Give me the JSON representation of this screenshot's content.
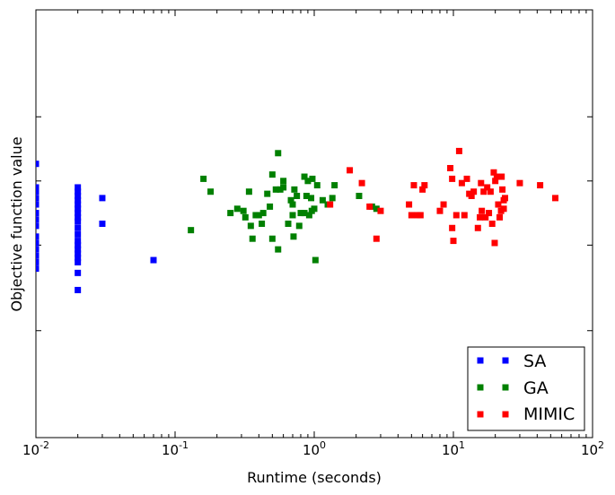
{
  "chart_data": {
    "type": "scatter",
    "xlabel": "Runtime (seconds)",
    "ylabel": "Objective function value",
    "xscale": "log",
    "xlim": [
      0.01,
      100
    ],
    "ylim": [
      0,
      1
    ],
    "y_tick_labels_shown": false,
    "x_ticks": [
      {
        "value": 0.01,
        "base": "10",
        "exp": "-2"
      },
      {
        "value": 0.1,
        "base": "10",
        "exp": "-1"
      },
      {
        "value": 1,
        "base": "10",
        "exp": "0"
      },
      {
        "value": 10,
        "base": "10",
        "exp": "1"
      },
      {
        "value": 100,
        "base": "10",
        "exp": "2"
      }
    ],
    "y_ticks": [
      0.25,
      0.45,
      0.6,
      0.75,
      1.0
    ],
    "grid": false,
    "legend_position": "lower-right",
    "series": [
      {
        "name": "SA",
        "color": "#0000ff",
        "points": [
          [
            0.01,
            0.64
          ],
          [
            0.01,
            0.585
          ],
          [
            0.01,
            0.575
          ],
          [
            0.01,
            0.56
          ],
          [
            0.01,
            0.545
          ],
          [
            0.01,
            0.525
          ],
          [
            0.01,
            0.51
          ],
          [
            0.01,
            0.495
          ],
          [
            0.01,
            0.47
          ],
          [
            0.01,
            0.455
          ],
          [
            0.01,
            0.44
          ],
          [
            0.01,
            0.425
          ],
          [
            0.01,
            0.41
          ],
          [
            0.01,
            0.395
          ],
          [
            0.02,
            0.585
          ],
          [
            0.02,
            0.575
          ],
          [
            0.02,
            0.565
          ],
          [
            0.02,
            0.555
          ],
          [
            0.02,
            0.545
          ],
          [
            0.02,
            0.535
          ],
          [
            0.02,
            0.525
          ],
          [
            0.02,
            0.515
          ],
          [
            0.02,
            0.505
          ],
          [
            0.02,
            0.49
          ],
          [
            0.02,
            0.475
          ],
          [
            0.02,
            0.46
          ],
          [
            0.02,
            0.45
          ],
          [
            0.02,
            0.44
          ],
          [
            0.02,
            0.43
          ],
          [
            0.02,
            0.42
          ],
          [
            0.02,
            0.41
          ],
          [
            0.02,
            0.385
          ],
          [
            0.02,
            0.345
          ],
          [
            0.03,
            0.56
          ],
          [
            0.03,
            0.5
          ],
          [
            0.07,
            0.415
          ]
        ]
      },
      {
        "name": "GA",
        "color": "#008000",
        "points": [
          [
            0.13,
            0.485
          ],
          [
            0.16,
            0.605
          ],
          [
            0.18,
            0.575
          ],
          [
            0.25,
            0.525
          ],
          [
            0.28,
            0.535
          ],
          [
            0.31,
            0.53
          ],
          [
            0.32,
            0.515
          ],
          [
            0.34,
            0.575
          ],
          [
            0.35,
            0.495
          ],
          [
            0.36,
            0.465
          ],
          [
            0.38,
            0.52
          ],
          [
            0.4,
            0.52
          ],
          [
            0.42,
            0.5
          ],
          [
            0.43,
            0.525
          ],
          [
            0.46,
            0.57
          ],
          [
            0.48,
            0.54
          ],
          [
            0.5,
            0.615
          ],
          [
            0.5,
            0.465
          ],
          [
            0.53,
            0.58
          ],
          [
            0.55,
            0.44
          ],
          [
            0.55,
            0.665
          ],
          [
            0.57,
            0.58
          ],
          [
            0.6,
            0.585
          ],
          [
            0.6,
            0.6
          ],
          [
            0.65,
            0.5
          ],
          [
            0.68,
            0.555
          ],
          [
            0.7,
            0.52
          ],
          [
            0.7,
            0.545
          ],
          [
            0.71,
            0.47
          ],
          [
            0.72,
            0.58
          ],
          [
            0.75,
            0.565
          ],
          [
            0.78,
            0.495
          ],
          [
            0.8,
            0.525
          ],
          [
            0.85,
            0.525
          ],
          [
            0.85,
            0.61
          ],
          [
            0.88,
            0.565
          ],
          [
            0.9,
            0.6
          ],
          [
            0.92,
            0.52
          ],
          [
            0.95,
            0.56
          ],
          [
            0.96,
            0.53
          ],
          [
            0.97,
            0.605
          ],
          [
            1.0,
            0.535
          ],
          [
            1.02,
            0.415
          ],
          [
            1.05,
            0.59
          ],
          [
            1.15,
            0.555
          ],
          [
            1.25,
            0.545
          ],
          [
            1.35,
            0.56
          ],
          [
            1.4,
            0.59
          ],
          [
            2.1,
            0.565
          ],
          [
            2.6,
            0.54
          ],
          [
            2.8,
            0.535
          ]
        ]
      },
      {
        "name": "MIMIC",
        "color": "#ff0000",
        "points": [
          [
            1.3,
            0.545
          ],
          [
            1.8,
            0.625
          ],
          [
            2.2,
            0.595
          ],
          [
            2.5,
            0.54
          ],
          [
            2.8,
            0.465
          ],
          [
            3.0,
            0.53
          ],
          [
            4.8,
            0.545
          ],
          [
            5.0,
            0.52
          ],
          [
            5.2,
            0.59
          ],
          [
            5.5,
            0.52
          ],
          [
            5.8,
            0.52
          ],
          [
            6.0,
            0.58
          ],
          [
            6.2,
            0.59
          ],
          [
            8.0,
            0.53
          ],
          [
            8.5,
            0.545
          ],
          [
            9.5,
            0.63
          ],
          [
            9.8,
            0.605
          ],
          [
            9.8,
            0.49
          ],
          [
            10.0,
            0.46
          ],
          [
            10.5,
            0.52
          ],
          [
            11.0,
            0.67
          ],
          [
            11.5,
            0.595
          ],
          [
            12.0,
            0.52
          ],
          [
            12.5,
            0.605
          ],
          [
            13.0,
            0.57
          ],
          [
            13.5,
            0.565
          ],
          [
            14.0,
            0.575
          ],
          [
            15.0,
            0.49
          ],
          [
            15.5,
            0.515
          ],
          [
            15.8,
            0.595
          ],
          [
            16.0,
            0.53
          ],
          [
            16.5,
            0.575
          ],
          [
            17.0,
            0.515
          ],
          [
            17.5,
            0.585
          ],
          [
            18.0,
            0.525
          ],
          [
            18.5,
            0.575
          ],
          [
            19.0,
            0.5
          ],
          [
            19.5,
            0.62
          ],
          [
            19.8,
            0.455
          ],
          [
            20.0,
            0.6
          ],
          [
            20.5,
            0.61
          ],
          [
            21.0,
            0.545
          ],
          [
            21.5,
            0.515
          ],
          [
            22.0,
            0.53
          ],
          [
            22.2,
            0.61
          ],
          [
            22.5,
            0.58
          ],
          [
            23.0,
            0.555
          ],
          [
            23.0,
            0.535
          ],
          [
            23.5,
            0.56
          ],
          [
            30.0,
            0.595
          ],
          [
            42.0,
            0.59
          ],
          [
            54.0,
            0.56
          ]
        ]
      }
    ]
  }
}
